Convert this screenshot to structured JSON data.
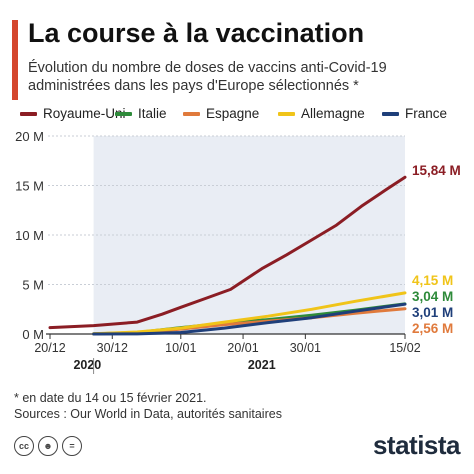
{
  "header": {
    "title": "La course à la vaccination",
    "subtitle": "Évolution du nombre de doses de vaccins anti-Covid-19 administrées dans les pays d'Europe sélectionnés *"
  },
  "footer": {
    "footnote": "* en date du 14 ou 15 février 2021.",
    "sources": "Sources : Our World in Data, autorités sanitaires",
    "brand": "statista"
  },
  "chart_data": {
    "type": "line",
    "title": "La course à la vaccination",
    "subtitle": "Évolution du nombre de doses de vaccins anti-Covid-19 administrées dans les pays d'Europe sélectionnés *",
    "xlabel": "",
    "ylabel": "",
    "x_ticks": [
      {
        "date": "2020-12-20",
        "label": "20/12"
      },
      {
        "date": "2020-12-30",
        "label": "30/12"
      },
      {
        "date": "2021-01-10",
        "label": "10/01"
      },
      {
        "date": "2021-01-20",
        "label": "20/01"
      },
      {
        "date": "2021-01-30",
        "label": "30/01"
      },
      {
        "date": "2021-02-15",
        "label": "15/02"
      }
    ],
    "years": [
      {
        "date": "2020-12-26",
        "label": "2020"
      },
      {
        "date": "2021-01-23",
        "label": "2021"
      }
    ],
    "xlim": [
      "2020-12-20",
      "2021-02-15"
    ],
    "shade_from": "2020-12-27",
    "y_ticks": [
      {
        "value": 0,
        "label": "0 M"
      },
      {
        "value": 5,
        "label": "5 M"
      },
      {
        "value": 10,
        "label": "10 M"
      },
      {
        "value": 15,
        "label": "15 M"
      },
      {
        "value": 20,
        "label": "20 M"
      }
    ],
    "ylim": [
      0,
      20
    ],
    "grid": true,
    "legend_position": "top",
    "series": [
      {
        "name": "Royaume-Uni",
        "color": "#8b1d24",
        "end_label": "15,84 M",
        "points": [
          [
            "2020-12-20",
            0.65
          ],
          [
            "2020-12-27",
            0.85
          ],
          [
            "2021-01-03",
            1.2
          ],
          [
            "2021-01-07",
            2.0
          ],
          [
            "2021-01-10",
            2.7
          ],
          [
            "2021-01-14",
            3.6
          ],
          [
            "2021-01-18",
            4.5
          ],
          [
            "2021-01-23",
            6.6
          ],
          [
            "2021-01-27",
            8.0
          ],
          [
            "2021-01-31",
            9.5
          ],
          [
            "2021-02-04",
            11.0
          ],
          [
            "2021-02-08",
            12.9
          ],
          [
            "2021-02-12",
            14.6
          ],
          [
            "2021-02-15",
            15.84
          ]
        ]
      },
      {
        "name": "Italie",
        "color": "#2e8b3a",
        "end_label": "3,04 M",
        "points": [
          [
            "2020-12-27",
            0.01
          ],
          [
            "2021-01-03",
            0.15
          ],
          [
            "2021-01-10",
            0.65
          ],
          [
            "2021-01-17",
            1.1
          ],
          [
            "2021-01-24",
            1.45
          ],
          [
            "2021-01-31",
            1.9
          ],
          [
            "2021-02-07",
            2.4
          ],
          [
            "2021-02-15",
            3.04
          ]
        ]
      },
      {
        "name": "Espagne",
        "color": "#e07a3c",
        "end_label": "2,56 M",
        "points": [
          [
            "2020-12-27",
            0.01
          ],
          [
            "2021-01-03",
            0.1
          ],
          [
            "2021-01-10",
            0.5
          ],
          [
            "2021-01-17",
            0.95
          ],
          [
            "2021-01-24",
            1.3
          ],
          [
            "2021-01-31",
            1.65
          ],
          [
            "2021-02-07",
            2.1
          ],
          [
            "2021-02-15",
            2.56
          ]
        ]
      },
      {
        "name": "Allemagne",
        "color": "#f0c419",
        "end_label": "4,15 M",
        "points": [
          [
            "2020-12-27",
            0.02
          ],
          [
            "2021-01-03",
            0.2
          ],
          [
            "2021-01-10",
            0.6
          ],
          [
            "2021-01-17",
            1.2
          ],
          [
            "2021-01-24",
            1.8
          ],
          [
            "2021-01-31",
            2.5
          ],
          [
            "2021-02-07",
            3.3
          ],
          [
            "2021-02-15",
            4.15
          ]
        ]
      },
      {
        "name": "France",
        "color": "#1f3f7a",
        "end_label": "3,01 M",
        "points": [
          [
            "2020-12-27",
            0.0
          ],
          [
            "2021-01-03",
            0.01
          ],
          [
            "2021-01-10",
            0.15
          ],
          [
            "2021-01-17",
            0.6
          ],
          [
            "2021-01-24",
            1.15
          ],
          [
            "2021-01-31",
            1.65
          ],
          [
            "2021-02-07",
            2.3
          ],
          [
            "2021-02-15",
            3.01
          ]
        ]
      }
    ]
  }
}
